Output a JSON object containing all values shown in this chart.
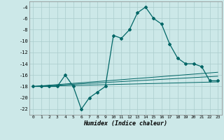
{
  "title": "",
  "xlabel": "Humidex (Indice chaleur)",
  "background_color": "#cce8e8",
  "grid_color": "#aacccc",
  "line_color": "#006666",
  "xlim": [
    -0.5,
    23.5
  ],
  "ylim": [
    -23,
    -3.0
  ],
  "yticks": [
    -22,
    -20,
    -18,
    -16,
    -14,
    -12,
    -10,
    -8,
    -6,
    -4
  ],
  "xticks": [
    0,
    1,
    2,
    3,
    4,
    5,
    6,
    7,
    8,
    9,
    10,
    11,
    12,
    13,
    14,
    15,
    16,
    17,
    18,
    19,
    20,
    21,
    22,
    23
  ],
  "main_series": {
    "x": [
      0,
      1,
      2,
      3,
      4,
      5,
      6,
      7,
      8,
      9,
      10,
      11,
      12,
      13,
      14,
      15,
      16,
      17,
      18,
      19,
      20,
      21,
      22,
      23
    ],
    "y": [
      -18,
      -18,
      -18,
      -18,
      -16,
      -18,
      -22,
      -20,
      -19,
      -18,
      -9,
      -9.5,
      -8,
      -5,
      -4,
      -6,
      -7,
      -10.5,
      -13,
      -14,
      -14,
      -14.5,
      -17,
      -17
    ]
  },
  "linear_lines": [
    {
      "x": [
        0,
        23
      ],
      "y": [
        -18,
        -17.2
      ]
    },
    {
      "x": [
        0,
        23
      ],
      "y": [
        -18,
        -16.2
      ]
    },
    {
      "x": [
        0,
        23
      ],
      "y": [
        -18,
        -15.5
      ]
    }
  ]
}
